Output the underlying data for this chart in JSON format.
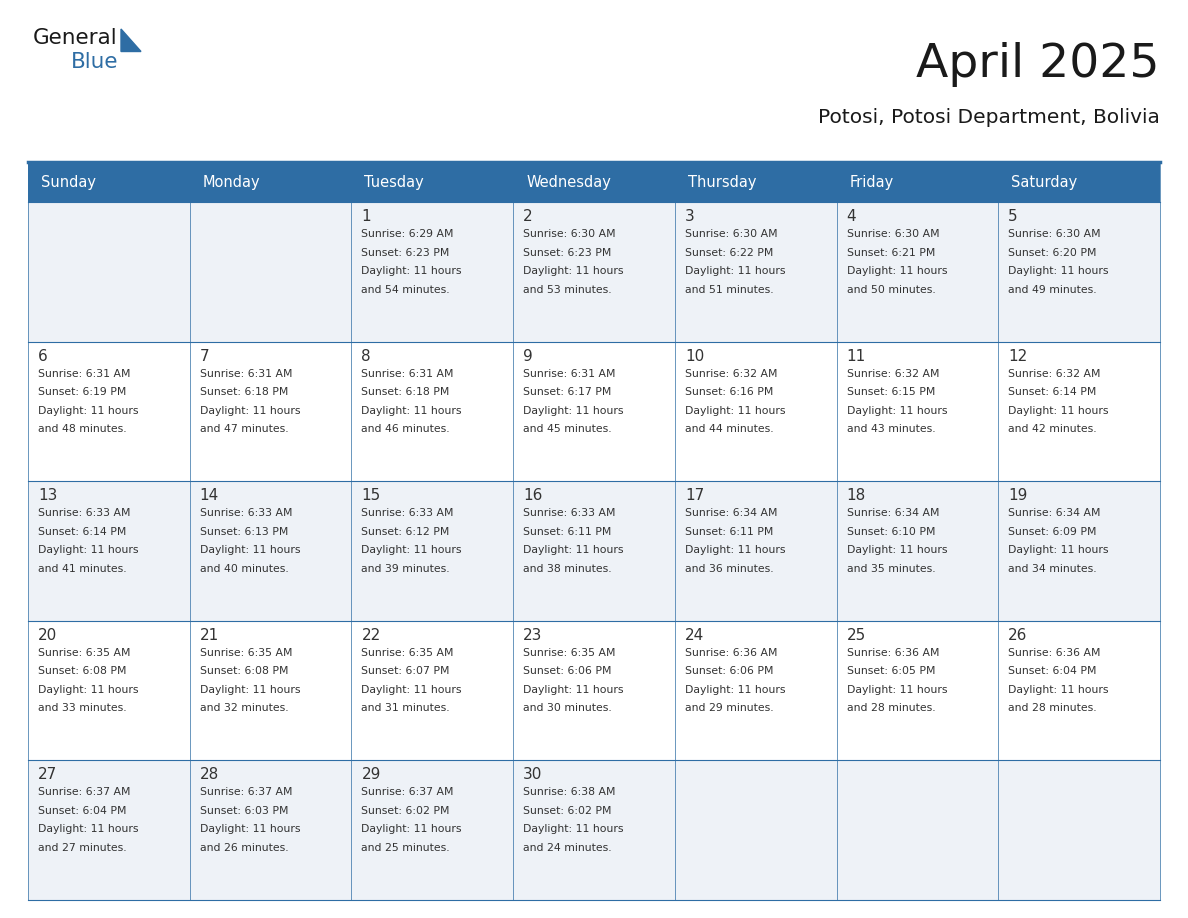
{
  "title": "April 2025",
  "subtitle": "Potosi, Potosi Department, Bolivia",
  "header_bg_color": "#2e6da4",
  "header_text_color": "#ffffff",
  "cell_bg_even": "#eef2f7",
  "cell_bg_odd": "#ffffff",
  "cell_text_color": "#333333",
  "border_color": "#2e6da4",
  "days_of_week": [
    "Sunday",
    "Monday",
    "Tuesday",
    "Wednesday",
    "Thursday",
    "Friday",
    "Saturday"
  ],
  "weeks": [
    [
      {
        "day": "",
        "sunrise": "",
        "sunset": "",
        "daylight": ""
      },
      {
        "day": "",
        "sunrise": "",
        "sunset": "",
        "daylight": ""
      },
      {
        "day": "1",
        "sunrise": "6:29 AM",
        "sunset": "6:23 PM",
        "daylight": "11 hours and 54 minutes."
      },
      {
        "day": "2",
        "sunrise": "6:30 AM",
        "sunset": "6:23 PM",
        "daylight": "11 hours and 53 minutes."
      },
      {
        "day": "3",
        "sunrise": "6:30 AM",
        "sunset": "6:22 PM",
        "daylight": "11 hours and 51 minutes."
      },
      {
        "day": "4",
        "sunrise": "6:30 AM",
        "sunset": "6:21 PM",
        "daylight": "11 hours and 50 minutes."
      },
      {
        "day": "5",
        "sunrise": "6:30 AM",
        "sunset": "6:20 PM",
        "daylight": "11 hours and 49 minutes."
      }
    ],
    [
      {
        "day": "6",
        "sunrise": "6:31 AM",
        "sunset": "6:19 PM",
        "daylight": "11 hours and 48 minutes."
      },
      {
        "day": "7",
        "sunrise": "6:31 AM",
        "sunset": "6:18 PM",
        "daylight": "11 hours and 47 minutes."
      },
      {
        "day": "8",
        "sunrise": "6:31 AM",
        "sunset": "6:18 PM",
        "daylight": "11 hours and 46 minutes."
      },
      {
        "day": "9",
        "sunrise": "6:31 AM",
        "sunset": "6:17 PM",
        "daylight": "11 hours and 45 minutes."
      },
      {
        "day": "10",
        "sunrise": "6:32 AM",
        "sunset": "6:16 PM",
        "daylight": "11 hours and 44 minutes."
      },
      {
        "day": "11",
        "sunrise": "6:32 AM",
        "sunset": "6:15 PM",
        "daylight": "11 hours and 43 minutes."
      },
      {
        "day": "12",
        "sunrise": "6:32 AM",
        "sunset": "6:14 PM",
        "daylight": "11 hours and 42 minutes."
      }
    ],
    [
      {
        "day": "13",
        "sunrise": "6:33 AM",
        "sunset": "6:14 PM",
        "daylight": "11 hours and 41 minutes."
      },
      {
        "day": "14",
        "sunrise": "6:33 AM",
        "sunset": "6:13 PM",
        "daylight": "11 hours and 40 minutes."
      },
      {
        "day": "15",
        "sunrise": "6:33 AM",
        "sunset": "6:12 PM",
        "daylight": "11 hours and 39 minutes."
      },
      {
        "day": "16",
        "sunrise": "6:33 AM",
        "sunset": "6:11 PM",
        "daylight": "11 hours and 38 minutes."
      },
      {
        "day": "17",
        "sunrise": "6:34 AM",
        "sunset": "6:11 PM",
        "daylight": "11 hours and 36 minutes."
      },
      {
        "day": "18",
        "sunrise": "6:34 AM",
        "sunset": "6:10 PM",
        "daylight": "11 hours and 35 minutes."
      },
      {
        "day": "19",
        "sunrise": "6:34 AM",
        "sunset": "6:09 PM",
        "daylight": "11 hours and 34 minutes."
      }
    ],
    [
      {
        "day": "20",
        "sunrise": "6:35 AM",
        "sunset": "6:08 PM",
        "daylight": "11 hours and 33 minutes."
      },
      {
        "day": "21",
        "sunrise": "6:35 AM",
        "sunset": "6:08 PM",
        "daylight": "11 hours and 32 minutes."
      },
      {
        "day": "22",
        "sunrise": "6:35 AM",
        "sunset": "6:07 PM",
        "daylight": "11 hours and 31 minutes."
      },
      {
        "day": "23",
        "sunrise": "6:35 AM",
        "sunset": "6:06 PM",
        "daylight": "11 hours and 30 minutes."
      },
      {
        "day": "24",
        "sunrise": "6:36 AM",
        "sunset": "6:06 PM",
        "daylight": "11 hours and 29 minutes."
      },
      {
        "day": "25",
        "sunrise": "6:36 AM",
        "sunset": "6:05 PM",
        "daylight": "11 hours and 28 minutes."
      },
      {
        "day": "26",
        "sunrise": "6:36 AM",
        "sunset": "6:04 PM",
        "daylight": "11 hours and 28 minutes."
      }
    ],
    [
      {
        "day": "27",
        "sunrise": "6:37 AM",
        "sunset": "6:04 PM",
        "daylight": "11 hours and 27 minutes."
      },
      {
        "day": "28",
        "sunrise": "6:37 AM",
        "sunset": "6:03 PM",
        "daylight": "11 hours and 26 minutes."
      },
      {
        "day": "29",
        "sunrise": "6:37 AM",
        "sunset": "6:02 PM",
        "daylight": "11 hours and 25 minutes."
      },
      {
        "day": "30",
        "sunrise": "6:38 AM",
        "sunset": "6:02 PM",
        "daylight": "11 hours and 24 minutes."
      },
      {
        "day": "",
        "sunrise": "",
        "sunset": "",
        "daylight": ""
      },
      {
        "day": "",
        "sunrise": "",
        "sunset": "",
        "daylight": ""
      },
      {
        "day": "",
        "sunrise": "",
        "sunset": "",
        "daylight": ""
      }
    ]
  ],
  "logo_color1": "#1a1a1a",
  "logo_color2": "#2e6da4",
  "logo_triangle_color": "#2e6da4",
  "fig_width": 11.88,
  "fig_height": 9.18,
  "dpi": 100
}
